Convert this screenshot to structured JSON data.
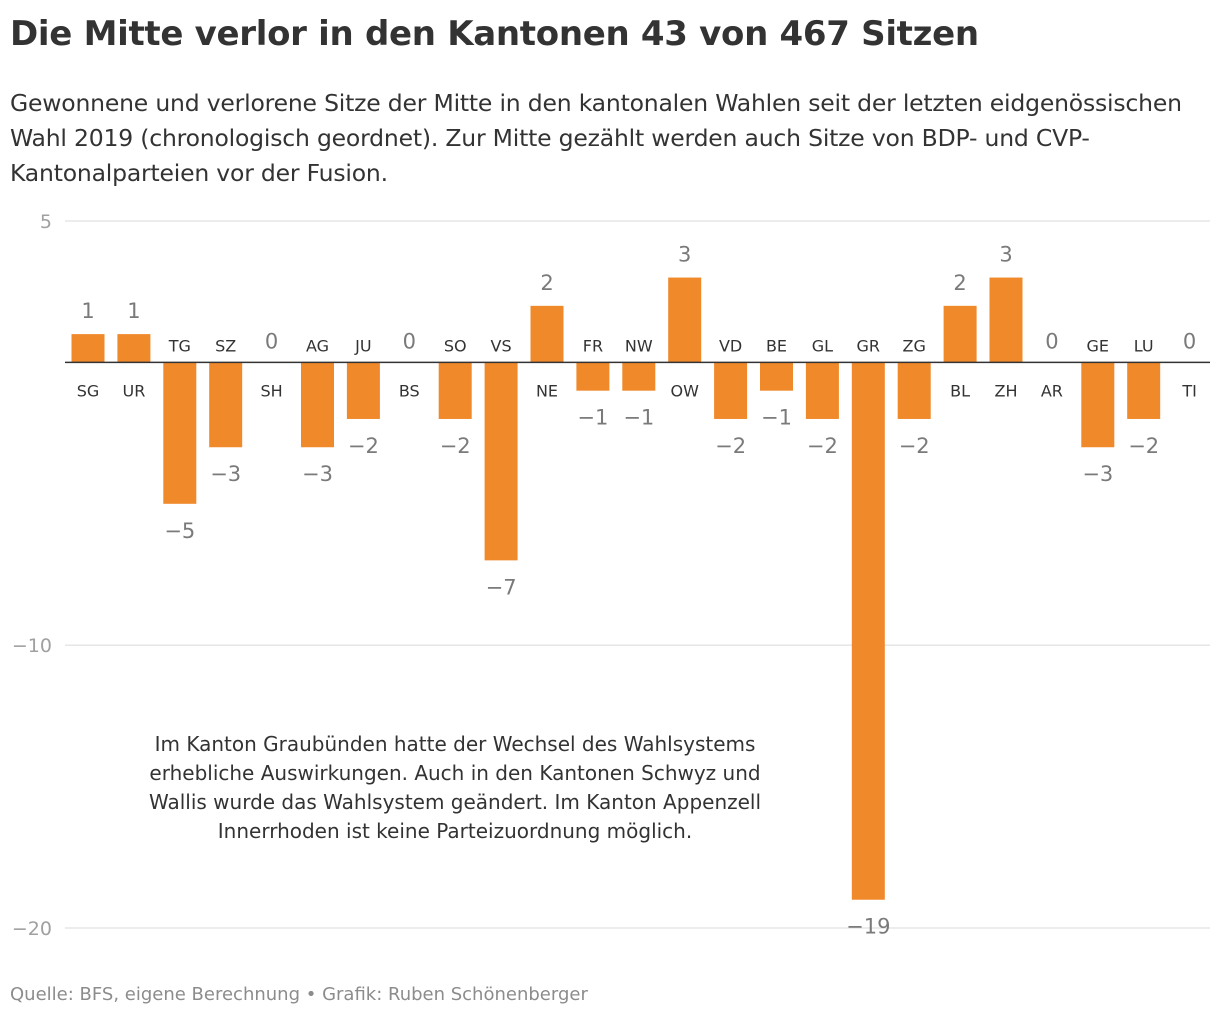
{
  "title": "Die Mitte verlor in den Kantonen 43 von 467 Sitzen",
  "subtitle": "Gewonnene und verlorene Sitze der Mitte in den kantonalen Wahlen seit der letzten eidgenössischen Wahl 2019 (chronologisch geordnet). Zur Mitte gezählt werden auch Sitze von BDP- und CVP-Kantonalparteien vor der Fusion.",
  "source": "Quelle: BFS, eigene Berechnung • Grafik: Ruben Schönenberger",
  "colors": {
    "bar": "#f0892a",
    "grid": "#e6e6e6",
    "zero_line": "#333333",
    "text": "#333333",
    "muted": "#a0a0a0"
  },
  "chart_data": {
    "type": "bar",
    "categories": [
      "SG",
      "UR",
      "TG",
      "SZ",
      "SH",
      "AG",
      "JU",
      "BS",
      "SO",
      "VS",
      "NE",
      "FR",
      "NW",
      "OW",
      "VD",
      "BE",
      "GL",
      "GR",
      "ZG",
      "BL",
      "ZH",
      "AR",
      "GE",
      "LU",
      "TI"
    ],
    "values": [
      1,
      1,
      -5,
      -3,
      0,
      -3,
      -2,
      0,
      -2,
      -7,
      2,
      -1,
      -1,
      3,
      -2,
      -1,
      -2,
      -19,
      -2,
      2,
      3,
      0,
      -3,
      -2,
      0
    ],
    "value_labels": [
      "1",
      "1",
      "−5",
      "−3",
      "0",
      "−3",
      "−2",
      "0",
      "−2",
      "−7",
      "2",
      "−1",
      "−1",
      "3",
      "−2",
      "−1",
      "−2",
      "−19",
      "−2",
      "2",
      "3",
      "0",
      "−3",
      "−2",
      "0"
    ],
    "yticks": [
      5,
      -10,
      -20
    ],
    "ytick_labels": [
      "5",
      "−10",
      "−20"
    ],
    "ylim": [
      -20,
      5
    ],
    "grid": true,
    "annotation": [
      "Im Kanton Graubünden hatte der Wechsel des Wahlsystems",
      "erhebliche Auswirkungen. Auch in den Kantonen Schwyz und",
      "Wallis wurde das Wahlsystem geändert. Im Kanton Appenzell",
      "Innerrhoden ist keine Parteizuordnung möglich."
    ]
  }
}
